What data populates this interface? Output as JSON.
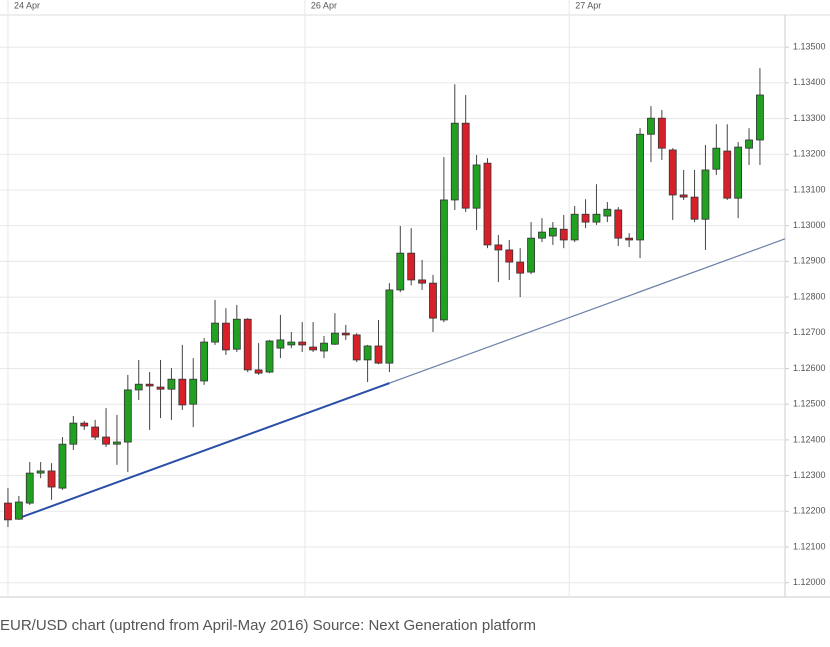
{
  "chart_data": {
    "type": "candlestick",
    "caption": "EUR/USD chart (uptrend from April-May 2016) Source: Next Generation platform",
    "x_labels": [
      {
        "value": 0,
        "label": "24 Apr"
      },
      {
        "value": 27.25,
        "label": "26 Apr"
      },
      {
        "value": 51.5,
        "label": "27 Apr"
      }
    ],
    "open": [
      1.12223,
      1.12178,
      1.12223,
      1.12307,
      1.12313,
      1.12265,
      1.12388,
      1.12447,
      1.12436,
      1.12408,
      1.12388,
      1.12394,
      1.1254,
      1.12556,
      1.12548,
      1.12542,
      1.1257,
      1.125,
      1.12565,
      1.12674,
      1.12727,
      1.12654,
      1.12738,
      1.12596,
      1.1259,
      1.12657,
      1.12666,
      1.12674,
      1.1266,
      1.12649,
      1.12668,
      1.12699,
      1.12694,
      1.12624,
      1.12663,
      1.12615,
      1.1282,
      1.12923,
      1.12848,
      1.12839,
      1.12736,
      1.13072,
      1.13287,
      1.13049,
      1.13175,
      1.12946,
      1.12932,
      1.12898,
      1.1287,
      1.12965,
      1.12971,
      1.1299,
      1.1296,
      1.13032,
      1.1301,
      1.13027,
      1.13044,
      1.12965,
      1.1296,
      1.13256,
      1.13301,
      1.13212,
      1.13086,
      1.1308,
      1.13018,
      1.13158,
      1.13209,
      1.13077,
      1.13217,
      1.1324
    ],
    "high": [
      1.12265,
      1.12243,
      1.12338,
      1.12338,
      1.12335,
      1.12408,
      1.12467,
      1.12453,
      1.12456,
      1.12489,
      1.1247,
      1.12582,
      1.12624,
      1.1259,
      1.12624,
      1.12601,
      1.12666,
      1.12629,
      1.12685,
      1.12792,
      1.12769,
      1.12778,
      1.12741,
      1.12671,
      1.1268,
      1.1275,
      1.12702,
      1.1273,
      1.1273,
      1.12691,
      1.12755,
      1.12722,
      1.12699,
      1.12666,
      1.12736,
      1.12839,
      1.12999,
      1.12993,
      1.12904,
      1.12862,
      1.13192,
      1.13396,
      1.13366,
      1.13198,
      1.13189,
      1.12974,
      1.1296,
      1.12937,
      1.1301,
      1.13021,
      1.1301,
      1.1303,
      1.13055,
      1.13074,
      1.13116,
      1.13066,
      1.13052,
      1.12979,
      1.13273,
      1.13335,
      1.13324,
      1.13217,
      1.13156,
      1.13156,
      1.13226,
      1.13284,
      1.13284,
      1.13234,
      1.13273,
      1.13441
    ],
    "low": [
      1.12156,
      1.12176,
      1.12218,
      1.12293,
      1.12232,
      1.1226,
      1.12372,
      1.12428,
      1.124,
      1.1238,
      1.1233,
      1.1231,
      1.12512,
      1.12428,
      1.12461,
      1.12456,
      1.12484,
      1.12436,
      1.12554,
      1.12666,
      1.12638,
      1.12646,
      1.1259,
      1.12582,
      1.12587,
      1.12629,
      1.12657,
      1.12646,
      1.12646,
      1.12629,
      1.12666,
      1.1268,
      1.12618,
      1.12562,
      1.12612,
      1.1259,
      1.12814,
      1.12833,
      1.1282,
      1.12702,
      1.1273,
      1.13044,
      1.13038,
      1.12988,
      1.12937,
      1.12842,
      1.12848,
      1.128,
      1.12864,
      1.12954,
      1.12946,
      1.12937,
      1.12954,
      1.12993,
      1.13002,
      1.1301,
      1.12943,
      1.1294,
      1.12909,
      1.13178,
      1.13184,
      1.13016,
      1.13072,
      1.1301,
      1.12932,
      1.13142,
      1.13072,
      1.13021,
      1.1317,
      1.1317
    ],
    "close": [
      1.12176,
      1.12226,
      1.12307,
      1.12313,
      1.12268,
      1.12388,
      1.12447,
      1.12439,
      1.12408,
      1.12388,
      1.12394,
      1.1254,
      1.12556,
      1.12551,
      1.12542,
      1.1257,
      1.12498,
      1.1257,
      1.12674,
      1.12727,
      1.12652,
      1.12738,
      1.12596,
      1.12587,
      1.12677,
      1.1268,
      1.12674,
      1.12666,
      1.12652,
      1.12671,
      1.12699,
      1.12694,
      1.12624,
      1.12663,
      1.12615,
      1.1282,
      1.12923,
      1.12848,
      1.12839,
      1.12741,
      1.13072,
      1.13287,
      1.13049,
      1.1317,
      1.12946,
      1.12932,
      1.12898,
      1.12867,
      1.12965,
      1.12982,
      1.12993,
      1.1296,
      1.13032,
      1.1301,
      1.13032,
      1.13046,
      1.12965,
      1.1296,
      1.13256,
      1.13301,
      1.13217,
      1.13086,
      1.1308,
      1.13018,
      1.13156,
      1.13217,
      1.13077,
      1.1322,
      1.1324,
      1.13366
    ],
    "up_color": "#22a022",
    "down_color": "#d8202a",
    "trendline": {
      "x": [
        1,
        35,
        71.3
      ],
      "y": [
        1.12181,
        1.12559,
        1.12963
      ],
      "colors": [
        "#2a4fa8",
        "#6a7fa8"
      ]
    },
    "xlim": [
      -0.73,
      71.3
    ],
    "ylim": [
      1.1196,
      1.1359
    ],
    "yticks": [
      {
        "value": 1.12,
        "label": "1.12000"
      },
      {
        "value": 1.121,
        "label": "1.12100"
      },
      {
        "value": 1.122,
        "label": "1.12200"
      },
      {
        "value": 1.123,
        "label": "1.12300"
      },
      {
        "value": 1.124,
        "label": "1.12400"
      },
      {
        "value": 1.125,
        "label": "1.12500"
      },
      {
        "value": 1.126,
        "label": "1.12600"
      },
      {
        "value": 1.127,
        "label": "1.12700"
      },
      {
        "value": 1.128,
        "label": "1.12800"
      },
      {
        "value": 1.129,
        "label": "1.12900"
      },
      {
        "value": 1.13,
        "label": "1.13000"
      },
      {
        "value": 1.131,
        "label": "1.13100"
      },
      {
        "value": 1.132,
        "label": "1.13200"
      },
      {
        "value": 1.133,
        "label": "1.13300"
      },
      {
        "value": 1.134,
        "label": "1.13400"
      },
      {
        "value": 1.135,
        "label": "1.13500"
      }
    ],
    "grid": true
  }
}
